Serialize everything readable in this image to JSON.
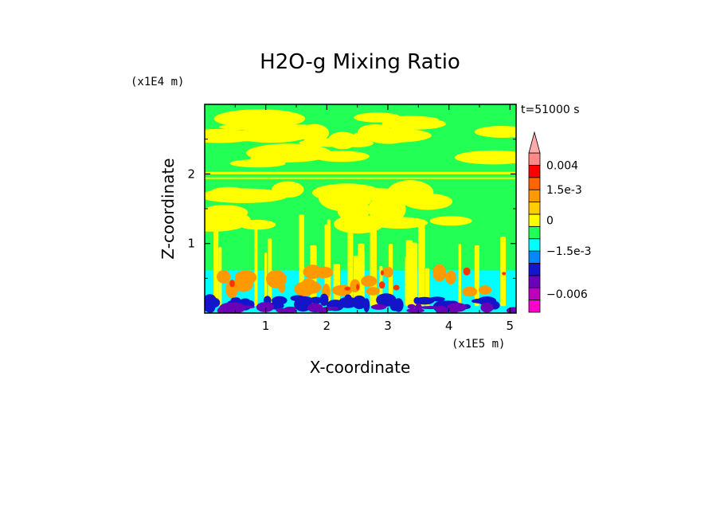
{
  "chart_data": {
    "type": "heatmap",
    "title": "H2O-g Mixing Ratio",
    "xlabel": "X-coordinate",
    "ylabel": "Z-coordinate",
    "x_unit": "(x1E5 m)",
    "y_unit": "(x1E4 m)",
    "time_label": "t=51000 s",
    "xlim": [
      0,
      5.1
    ],
    "ylim": [
      0,
      3.0
    ],
    "x_ticks": [
      {
        "value": 1,
        "label": "1"
      },
      {
        "value": 2,
        "label": "2"
      },
      {
        "value": 3,
        "label": "3"
      },
      {
        "value": 4,
        "label": "4"
      },
      {
        "value": 5,
        "label": "5"
      }
    ],
    "y_ticks": [
      {
        "value": 1,
        "label": "1"
      },
      {
        "value": 2,
        "label": "2"
      }
    ],
    "colorbar": {
      "levels": [
        {
          "color": "#ff00cc"
        },
        {
          "color": "#bb00bb"
        },
        {
          "color": "#6a00b8"
        },
        {
          "color": "#1414c8"
        },
        {
          "color": "#0088ff"
        },
        {
          "color": "#00ffff"
        },
        {
          "color": "#22ff55"
        },
        {
          "color": "#ffff00"
        },
        {
          "color": "#ffcc00"
        },
        {
          "color": "#ff9900"
        },
        {
          "color": "#ff6600"
        },
        {
          "color": "#ff0000"
        },
        {
          "color": "#ff8888"
        },
        {
          "color": "#ffaaaa"
        }
      ],
      "tick_labels": [
        {
          "label": "0.004",
          "level_index": 12
        },
        {
          "label": "1.5e-3",
          "level_index": 10
        },
        {
          "label": "0",
          "level_index": 7.5
        },
        {
          "label": "−1.5e-3",
          "level_index": 5
        },
        {
          "label": "−0.006",
          "level_index": 1.5
        }
      ]
    },
    "field_colors": {
      "background": "#22ff55",
      "moist": "#ffff00",
      "plume": "#ff9900",
      "core": "#ff3300",
      "cyan_layer": "#00ffff",
      "blue": "#1414c8",
      "purple": "#6a00b8"
    }
  }
}
